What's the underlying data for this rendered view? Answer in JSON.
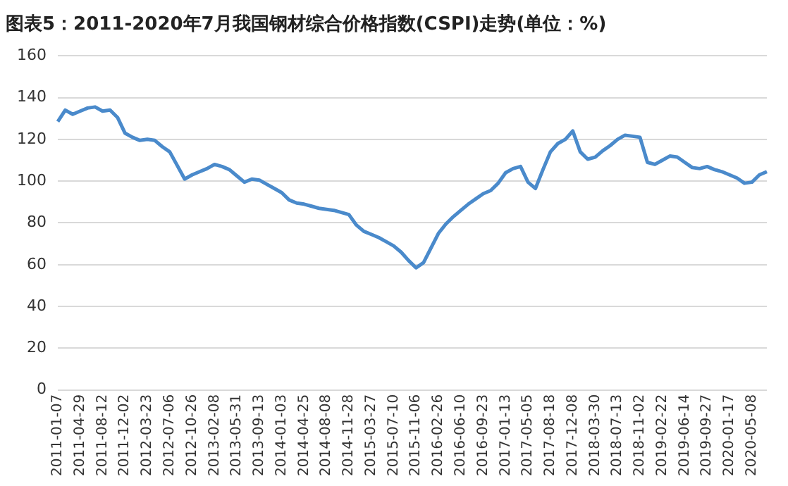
{
  "chart_data": {
    "type": "line",
    "title": "图表5：2011-2020年7月我国钢材综合价格指数(CSPI)走势(单位：%)",
    "categories": [
      "2011-01-07",
      null,
      null,
      "2011-04-29",
      null,
      null,
      "2011-08-12",
      null,
      null,
      "2011-12-02",
      null,
      null,
      "2012-03-23",
      null,
      null,
      "2012-07-06",
      null,
      null,
      "2012-10-26",
      null,
      null,
      "2013-02-08",
      null,
      null,
      "2013-05-31",
      null,
      null,
      "2013-09-13",
      null,
      null,
      "2014-01-03",
      null,
      null,
      "2014-04-25",
      null,
      null,
      "2014-08-08",
      null,
      null,
      "2014-11-28",
      null,
      null,
      "2015-03-27",
      null,
      null,
      "2015-07-10",
      null,
      null,
      "2015-11-06",
      null,
      null,
      "2016-02-26",
      null,
      null,
      "2016-06-10",
      null,
      null,
      "2016-09-23",
      null,
      null,
      "2017-01-13",
      null,
      null,
      "2017-05-05",
      null,
      null,
      "2017-08-18",
      null,
      null,
      "2017-12-08",
      null,
      null,
      "2018-03-30",
      null,
      null,
      "2018-07-13",
      null,
      null,
      "2018-11-02",
      null,
      null,
      "2019-02-22",
      null,
      null,
      "2019-06-14",
      null,
      null,
      "2019-09-27",
      null,
      null,
      "2020-01-17",
      null,
      null,
      "2020-05-08",
      null,
      null
    ],
    "series": [
      {
        "color": "#4a8acb",
        "values": [
          128.5,
          134,
          132,
          133.5,
          135,
          135.5,
          133.5,
          134,
          130.5,
          123,
          121,
          119.5,
          120,
          119.5,
          116.5,
          114,
          107.5,
          101,
          103,
          104.5,
          106,
          108,
          107,
          105.5,
          102.5,
          99.5,
          101,
          100.5,
          98.5,
          96.5,
          94.5,
          91,
          89.5,
          89,
          88,
          87,
          86.5,
          86,
          85,
          84,
          79,
          76,
          74.5,
          73,
          71,
          69,
          66,
          62,
          58.5,
          61,
          68,
          75,
          79.5,
          83,
          86,
          89,
          91.5,
          94,
          95.5,
          99,
          104,
          106,
          107,
          99.5,
          96.5,
          105.5,
          114,
          118,
          120,
          124,
          114,
          110.5,
          111.5,
          114.5,
          117,
          120,
          122,
          121.5,
          121,
          109,
          108,
          110,
          112,
          111.5,
          109,
          106.5,
          106,
          107,
          105.5,
          104.5,
          103,
          101.5,
          99,
          99.5,
          103,
          104.5
        ]
      }
    ],
    "ylim": [
      0,
      160
    ],
    "yticks": [
      0,
      20,
      40,
      60,
      80,
      100,
      120,
      140,
      160
    ],
    "grid": "y",
    "legend": false,
    "marker": "none"
  }
}
